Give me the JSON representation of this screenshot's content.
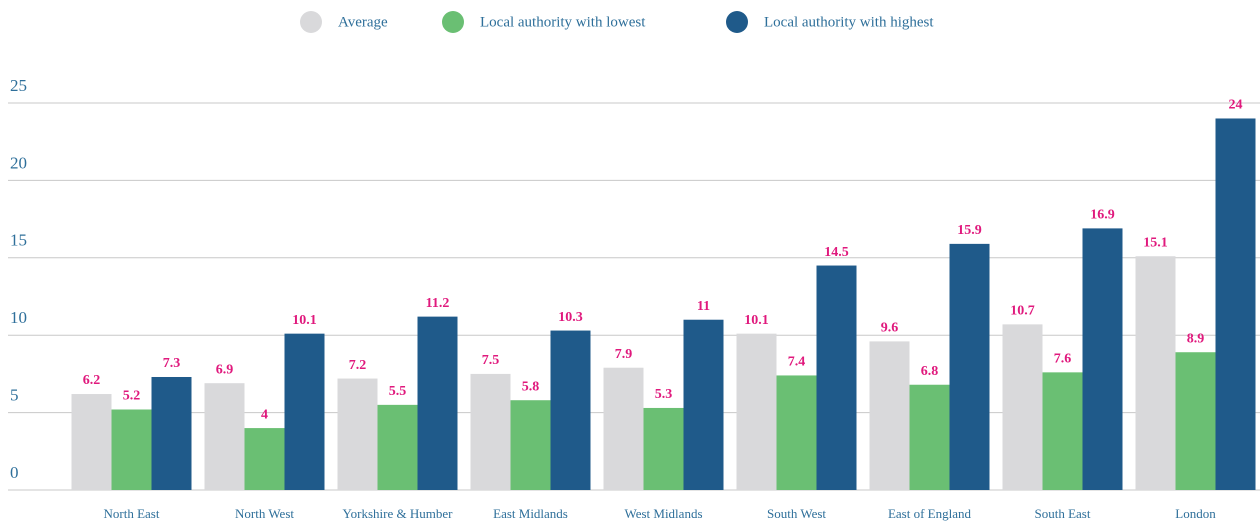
{
  "chart_data": {
    "type": "bar",
    "categories": [
      "North East",
      "North West",
      "Yorkshire & Humber",
      "East Midlands",
      "West Midlands",
      "South West",
      "East of England",
      "South East",
      "London"
    ],
    "series": [
      {
        "name": "Average",
        "color": "#d9d9db",
        "values": [
          6.2,
          6.9,
          7.2,
          7.5,
          7.9,
          10.1,
          9.6,
          10.7,
          15.1
        ]
      },
      {
        "name": "Local authority with lowest",
        "color": "#6abf73",
        "values": [
          5.2,
          4,
          5.5,
          5.8,
          5.3,
          7.4,
          6.8,
          7.6,
          8.9
        ]
      },
      {
        "name": "Local authority with highest",
        "color": "#1f5a8a",
        "values": [
          7.3,
          10.1,
          11.2,
          10.3,
          11,
          14.5,
          15.9,
          16.9,
          24
        ]
      }
    ],
    "ylim": [
      0,
      25
    ],
    "yticks": [
      0,
      5,
      10,
      15,
      20,
      25
    ],
    "grid": true,
    "legend": "top"
  }
}
